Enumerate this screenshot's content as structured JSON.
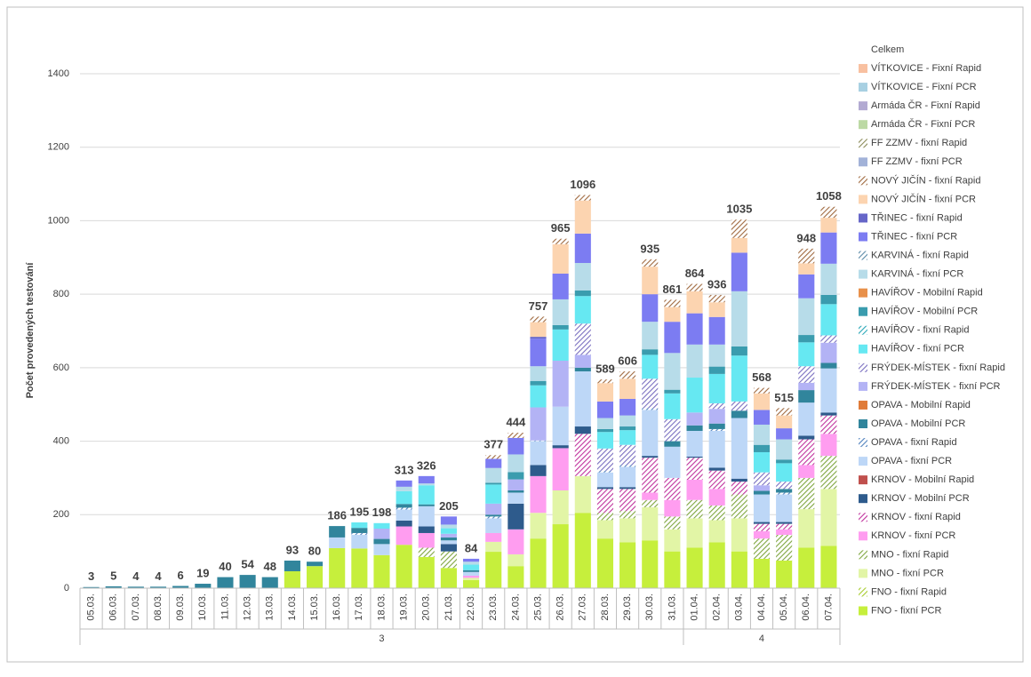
{
  "chart_data": {
    "type": "stacked_bar",
    "y_label": "Počet provedených testování",
    "ylim": [
      0,
      1400
    ],
    "yticks": [
      0,
      200,
      400,
      600,
      800,
      1000,
      1200,
      1400
    ],
    "grid": true,
    "categories": [
      "05.03.",
      "06.03.",
      "07.03.",
      "08.03.",
      "09.03.",
      "10.03.",
      "11.03.",
      "12.03.",
      "13.03.",
      "14.03.",
      "15.03.",
      "16.03.",
      "17.03.",
      "18.03.",
      "19.03.",
      "20.03.",
      "21.03.",
      "22.03.",
      "23.03.",
      "24.03.",
      "25.03.",
      "26.03.",
      "27.03.",
      "28.03.",
      "29.03.",
      "30.03.",
      "31.03.",
      "01.04.",
      "02.04.",
      "03.04.",
      "04.04.",
      "05.04.",
      "06.04.",
      "07.04."
    ],
    "groups": [
      {
        "label": "3",
        "count": 27
      },
      {
        "label": "4",
        "count": 7
      }
    ],
    "totals": {
      "name": "Celkem",
      "values": [
        3,
        5,
        4,
        4,
        6,
        19,
        40,
        54,
        48,
        93,
        80,
        186,
        195,
        198,
        313,
        326,
        205,
        84,
        377,
        444,
        757,
        965,
        1096,
        589,
        606,
        935,
        861,
        864,
        936,
        1035,
        568,
        515,
        948,
        1058
      ]
    },
    "series": [
      {
        "name": "FNO - fixní PCR",
        "color": "#c6ef3c",
        "values": [
          0,
          0,
          0,
          0,
          0,
          0,
          0,
          0,
          0,
          46,
          60,
          109,
          108,
          90,
          118,
          85,
          55,
          22,
          99,
          60,
          135,
          174,
          205,
          135,
          125,
          130,
          100,
          110,
          125,
          100,
          80,
          75,
          110,
          115
        ]
      },
      {
        "name": "FNO - fixní Rapid",
        "color": "#a6cc2a",
        "pattern": "hatch",
        "values": [
          0,
          0,
          0,
          0,
          0,
          0,
          0,
          0,
          0,
          0,
          0,
          0,
          0,
          0,
          0,
          0,
          0,
          0,
          0,
          0,
          0,
          0,
          0,
          0,
          0,
          0,
          0,
          0,
          0,
          0,
          0,
          0,
          0,
          0
        ]
      },
      {
        "name": "MNO - fixní PCR",
        "color": "#e2f5a6",
        "values": [
          0,
          0,
          0,
          0,
          0,
          0,
          0,
          0,
          0,
          0,
          0,
          0,
          0,
          0,
          0,
          0,
          0,
          6,
          27,
          32,
          70,
          92,
          100,
          50,
          65,
          90,
          60,
          80,
          60,
          90,
          0,
          0,
          105,
          155
        ]
      },
      {
        "name": "MNO - fixní Rapid",
        "color": "#7fa640",
        "pattern": "hatch",
        "values": [
          0,
          0,
          0,
          0,
          0,
          0,
          0,
          0,
          0,
          0,
          0,
          0,
          0,
          0,
          0,
          25,
          45,
          0,
          0,
          0,
          0,
          0,
          0,
          20,
          20,
          20,
          35,
          50,
          40,
          65,
          55,
          70,
          85,
          90
        ]
      },
      {
        "name": "KRNOV - fixní PCR",
        "color": "#ff9df0",
        "values": [
          0,
          0,
          0,
          0,
          0,
          0,
          0,
          0,
          0,
          0,
          0,
          0,
          0,
          0,
          50,
          40,
          0,
          6,
          24,
          68,
          100,
          115,
          0,
          0,
          0,
          20,
          45,
          55,
          45,
          0,
          20,
          15,
          35,
          60
        ]
      },
      {
        "name": "KRNOV - fixní Rapid",
        "color": "#c0349e",
        "pattern": "hatch",
        "values": [
          0,
          0,
          0,
          0,
          0,
          0,
          0,
          0,
          0,
          0,
          0,
          0,
          0,
          0,
          0,
          0,
          0,
          0,
          0,
          0,
          0,
          0,
          115,
          65,
          60,
          95,
          60,
          60,
          50,
          35,
          20,
          15,
          70,
          50
        ]
      },
      {
        "name": "KRNOV - Mobilní PCR",
        "color": "#2e5b8c",
        "values": [
          0,
          0,
          0,
          0,
          0,
          0,
          0,
          0,
          0,
          0,
          0,
          0,
          0,
          0,
          16,
          18,
          20,
          0,
          0,
          70,
          30,
          8,
          20,
          5,
          5,
          5,
          0,
          3,
          8,
          8,
          5,
          5,
          10,
          8
        ]
      },
      {
        "name": "KRNOV - Mobilní Rapid",
        "color": "#c0504d",
        "values": [
          0,
          0,
          0,
          0,
          0,
          0,
          0,
          0,
          0,
          0,
          0,
          0,
          0,
          0,
          0,
          0,
          0,
          0,
          0,
          0,
          0,
          0,
          0,
          0,
          0,
          0,
          0,
          0,
          0,
          0,
          0,
          0,
          0,
          0
        ]
      },
      {
        "name": "OPAVA - fixní PCR",
        "color": "#bdd7f7",
        "values": [
          0,
          0,
          0,
          0,
          0,
          0,
          0,
          0,
          0,
          0,
          0,
          29,
          37,
          30,
          30,
          55,
          10,
          10,
          40,
          30,
          65,
          105,
          150,
          40,
          55,
          125,
          85,
          70,
          100,
          165,
          75,
          75,
          90,
          120
        ]
      },
      {
        "name": "OPAVA - fixní Rapid",
        "color": "#4f81bd",
        "pattern": "hatch",
        "values": [
          0,
          0,
          0,
          0,
          0,
          0,
          0,
          0,
          0,
          0,
          0,
          0,
          5,
          0,
          5,
          0,
          0,
          0,
          5,
          0,
          2,
          0,
          0,
          5,
          5,
          5,
          0,
          0,
          5,
          0,
          0,
          5,
          0,
          0
        ]
      },
      {
        "name": "OPAVA - Mobilní PCR",
        "color": "#31859c",
        "values": [
          3,
          5,
          4,
          4,
          6,
          12,
          30,
          36,
          30,
          29,
          12,
          31,
          14,
          14,
          10,
          5,
          8,
          5,
          5,
          6,
          0,
          0,
          10,
          0,
          0,
          0,
          15,
          15,
          15,
          20,
          10,
          10,
          34,
          15
        ]
      },
      {
        "name": "OPAVA - Mobilní Rapid",
        "color": "#e07b39",
        "values": [
          0,
          0,
          0,
          0,
          0,
          0,
          0,
          0,
          0,
          0,
          0,
          0,
          0,
          0,
          0,
          0,
          0,
          0,
          0,
          0,
          0,
          0,
          0,
          0,
          0,
          0,
          0,
          0,
          0,
          0,
          0,
          0,
          0,
          0
        ]
      },
      {
        "name": "FRÝDEK-MÍSTEK - fixní PCR",
        "color": "#b3b3f5",
        "values": [
          0,
          0,
          0,
          0,
          0,
          0,
          0,
          0,
          0,
          0,
          0,
          0,
          0,
          28,
          0,
          0,
          10,
          0,
          30,
          30,
          90,
          125,
          35,
          0,
          0,
          0,
          0,
          35,
          40,
          0,
          15,
          0,
          20,
          55
        ]
      },
      {
        "name": "FRÝDEK-MÍSTEK - fixní Rapid",
        "color": "#7a6fc0",
        "pattern": "hatch",
        "values": [
          0,
          0,
          0,
          0,
          0,
          0,
          0,
          0,
          0,
          0,
          0,
          0,
          0,
          0,
          0,
          0,
          0,
          0,
          0,
          0,
          0,
          0,
          85,
          60,
          55,
          80,
          60,
          0,
          15,
          25,
          35,
          20,
          45,
          20
        ]
      },
      {
        "name": "HAVÍŘOV - fixní PCR",
        "color": "#66e8f2",
        "values": [
          0,
          0,
          0,
          0,
          0,
          0,
          0,
          0,
          0,
          0,
          0,
          0,
          15,
          15,
          35,
          52,
          15,
          15,
          52,
          0,
          60,
          85,
          75,
          45,
          40,
          65,
          70,
          95,
          80,
          125,
          55,
          50,
          65,
          85
        ]
      },
      {
        "name": "HAVÍŘOV - fixní Rapid",
        "color": "#2aa8b8",
        "pattern": "hatch",
        "values": [
          0,
          0,
          0,
          0,
          0,
          0,
          0,
          0,
          0,
          0,
          0,
          0,
          0,
          0,
          0,
          0,
          0,
          0,
          0,
          0,
          0,
          0,
          0,
          0,
          0,
          0,
          0,
          0,
          0,
          0,
          0,
          0,
          0,
          0
        ]
      },
      {
        "name": "HAVÍŘOV - Mobilní PCR",
        "color": "#3a9cae",
        "values": [
          0,
          0,
          0,
          0,
          0,
          0,
          0,
          0,
          0,
          0,
          0,
          0,
          0,
          0,
          0,
          0,
          0,
          0,
          5,
          20,
          12,
          12,
          15,
          8,
          10,
          15,
          10,
          0,
          20,
          25,
          20,
          10,
          20,
          25
        ]
      },
      {
        "name": "HAVÍŘOV - Mobilní Rapid",
        "color": "#e8904a",
        "values": [
          0,
          0,
          0,
          0,
          0,
          0,
          0,
          0,
          0,
          0,
          0,
          0,
          0,
          0,
          0,
          0,
          0,
          0,
          0,
          0,
          0,
          0,
          0,
          0,
          0,
          0,
          0,
          0,
          0,
          0,
          0,
          0,
          0,
          0
        ]
      },
      {
        "name": "KARVINÁ - fixní PCR",
        "color": "#b7dce9",
        "values": [
          0,
          0,
          0,
          0,
          0,
          0,
          0,
          0,
          0,
          0,
          0,
          0,
          0,
          0,
          12,
          5,
          10,
          8,
          40,
          48,
          40,
          70,
          75,
          30,
          30,
          75,
          100,
          90,
          60,
          150,
          55,
          55,
          100,
          85
        ]
      },
      {
        "name": "KARVINÁ - fixní Rapid",
        "color": "#5a8aa8",
        "pattern": "hatch",
        "values": [
          0,
          0,
          0,
          0,
          0,
          0,
          0,
          0,
          0,
          0,
          0,
          0,
          0,
          0,
          0,
          0,
          0,
          0,
          0,
          0,
          0,
          0,
          0,
          0,
          0,
          0,
          0,
          0,
          0,
          0,
          0,
          0,
          0,
          0
        ]
      },
      {
        "name": "TŘINEC - fixní PCR",
        "color": "#7c7cf2",
        "values": [
          0,
          0,
          0,
          0,
          0,
          0,
          0,
          0,
          0,
          0,
          0,
          0,
          0,
          0,
          17,
          20,
          22,
          8,
          25,
          45,
          75,
          70,
          80,
          45,
          45,
          75,
          85,
          85,
          75,
          105,
          40,
          30,
          65,
          85
        ]
      },
      {
        "name": "TŘINEC - fixní Rapid",
        "color": "#6666c8",
        "values": [
          0,
          0,
          0,
          0,
          0,
          0,
          0,
          0,
          0,
          0,
          0,
          0,
          0,
          0,
          0,
          0,
          0,
          0,
          0,
          0,
          5,
          0,
          0,
          0,
          0,
          0,
          0,
          0,
          0,
          0,
          0,
          0,
          0,
          0
        ]
      },
      {
        "name": "NOVÝ JIČÍN - fixní PCR",
        "color": "#fcd4b0",
        "values": [
          0,
          0,
          0,
          0,
          0,
          0,
          0,
          0,
          0,
          0,
          0,
          0,
          0,
          0,
          0,
          0,
          0,
          0,
          0,
          0,
          40,
          80,
          90,
          50,
          55,
          75,
          40,
          60,
          40,
          40,
          45,
          35,
          30,
          40
        ]
      },
      {
        "name": "NOVÝ JIČÍN - fixní Rapid",
        "color": "#a06a40",
        "pattern": "hatch",
        "values": [
          0,
          0,
          0,
          0,
          0,
          0,
          0,
          0,
          0,
          0,
          0,
          0,
          0,
          0,
          0,
          0,
          0,
          0,
          10,
          14,
          15,
          15,
          15,
          10,
          20,
          20,
          20,
          20,
          20,
          50,
          15,
          20,
          40,
          30
        ]
      },
      {
        "name": "FF ZZMV - fixní PCR",
        "color": "#a2b2d8",
        "values": [
          0,
          0,
          0,
          0,
          0,
          0,
          0,
          0,
          0,
          0,
          0,
          0,
          0,
          0,
          0,
          0,
          0,
          0,
          0,
          0,
          0,
          0,
          0,
          0,
          0,
          0,
          0,
          0,
          0,
          0,
          0,
          0,
          0,
          0
        ]
      },
      {
        "name": "FF ZZMV - fixní Rapid",
        "color": "#8a8a58",
        "pattern": "hatch",
        "values": [
          0,
          0,
          0,
          0,
          0,
          0,
          0,
          0,
          0,
          0,
          0,
          0,
          0,
          0,
          0,
          0,
          0,
          0,
          0,
          0,
          0,
          0,
          0,
          0,
          0,
          0,
          0,
          0,
          0,
          0,
          0,
          0,
          0,
          0
        ]
      },
      {
        "name": "Armáda ČR - Fixní PCR",
        "color": "#bcd9a4",
        "values": [
          0,
          0,
          0,
          0,
          0,
          0,
          0,
          0,
          0,
          0,
          0,
          0,
          0,
          0,
          0,
          0,
          0,
          0,
          0,
          0,
          0,
          0,
          0,
          0,
          0,
          0,
          0,
          0,
          0,
          0,
          0,
          0,
          0,
          0
        ]
      },
      {
        "name": "Armáda ČR - Fixní Rapid",
        "color": "#b2aad2",
        "values": [
          0,
          0,
          0,
          0,
          0,
          0,
          0,
          0,
          0,
          0,
          0,
          0,
          0,
          0,
          0,
          0,
          0,
          0,
          0,
          0,
          0,
          0,
          0,
          0,
          0,
          0,
          0,
          0,
          0,
          0,
          0,
          0,
          0,
          0
        ]
      },
      {
        "name": "VÍTKOVICE - Fixní PCR",
        "color": "#a8d0e2",
        "values": [
          0,
          0,
          0,
          0,
          0,
          0,
          0,
          0,
          0,
          0,
          0,
          0,
          0,
          0,
          0,
          0,
          0,
          0,
          0,
          0,
          0,
          0,
          0,
          0,
          0,
          0,
          0,
          0,
          0,
          0,
          0,
          0,
          0,
          0
        ]
      },
      {
        "name": "VÍTKOVICE - Fixní Rapid",
        "color": "#f8c0a0",
        "values": [
          0,
          0,
          0,
          0,
          0,
          0,
          0,
          0,
          0,
          0,
          0,
          0,
          0,
          0,
          0,
          0,
          0,
          0,
          0,
          0,
          0,
          0,
          0,
          0,
          0,
          0,
          0,
          0,
          0,
          0,
          0,
          0,
          0,
          0
        ]
      }
    ]
  }
}
